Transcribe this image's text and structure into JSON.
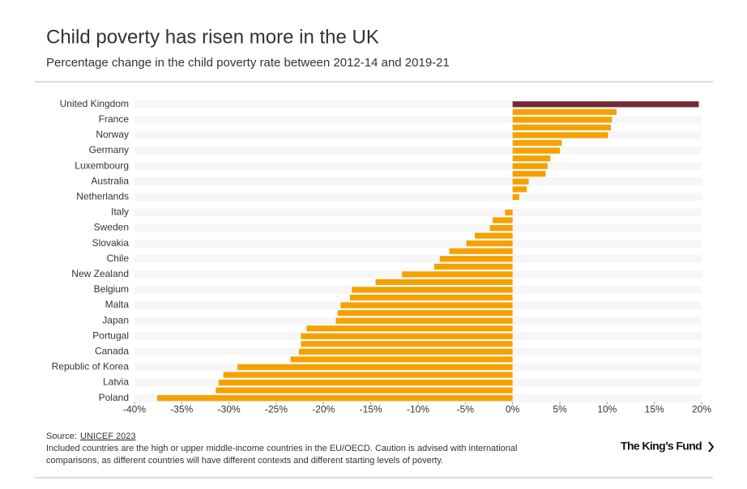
{
  "chart_data": {
    "type": "hbar",
    "title": "Child poverty has risen more in the UK",
    "subtitle": "Percentage change in the child poverty rate between 2012-14 and 2019-21",
    "categories": [
      "United Kingdom",
      null,
      "France",
      null,
      "Norway",
      null,
      "Germany",
      null,
      "Luxembourg",
      null,
      "Australia",
      null,
      "Netherlands",
      null,
      "Italy",
      null,
      "Sweden",
      null,
      "Slovakia",
      null,
      "Chile",
      null,
      "New Zealand",
      null,
      "Belgium",
      null,
      "Malta",
      null,
      "Japan",
      null,
      "Portugal",
      null,
      "Canada",
      null,
      "Republic of Korea",
      null,
      "Latvia",
      null,
      "Poland"
    ],
    "values": [
      19.7,
      11.0,
      10.5,
      10.4,
      10.1,
      5.2,
      5.0,
      4.0,
      3.7,
      3.5,
      1.7,
      1.5,
      0.7,
      0,
      -0.8,
      -2.1,
      -2.4,
      -4.0,
      -4.9,
      -6.7,
      -7.7,
      -8.3,
      -11.7,
      -14.5,
      -17.0,
      -17.2,
      -18.2,
      -18.5,
      -18.7,
      -21.8,
      -22.4,
      -22.4,
      -22.6,
      -23.5,
      -29.1,
      -30.6,
      -31.1,
      -31.4,
      -37.6
    ],
    "color": "#f5a100",
    "highlight_color": "#742a35",
    "highlight": [
      "United Kingdom"
    ],
    "xlim": [
      -40,
      20
    ],
    "xticks": [
      {
        "value": -40,
        "label": "-40%"
      },
      {
        "value": -35,
        "label": "-35%"
      },
      {
        "value": -30,
        "label": "-30%"
      },
      {
        "value": -25,
        "label": "-25%"
      },
      {
        "value": -20,
        "label": "-20%"
      },
      {
        "value": -15,
        "label": "-15%"
      },
      {
        "value": -10,
        "label": "-10%"
      },
      {
        "value": -5,
        "label": "-5%"
      },
      {
        "value": 0,
        "label": "0%"
      },
      {
        "value": 5,
        "label": "5%"
      },
      {
        "value": 10,
        "label": "10%"
      },
      {
        "value": 15,
        "label": "15%"
      },
      {
        "value": 20,
        "label": "20%"
      }
    ],
    "source_label": "Source:",
    "source": "UNICEF 2023",
    "note": [
      "Included countries are the high or upper middle-income countries in the EU/OECD. Caution is advised with international",
      "comparisons, as different countries will have different contexts and different starting levels of poverty."
    ],
    "logo": "The King’s Fund"
  }
}
